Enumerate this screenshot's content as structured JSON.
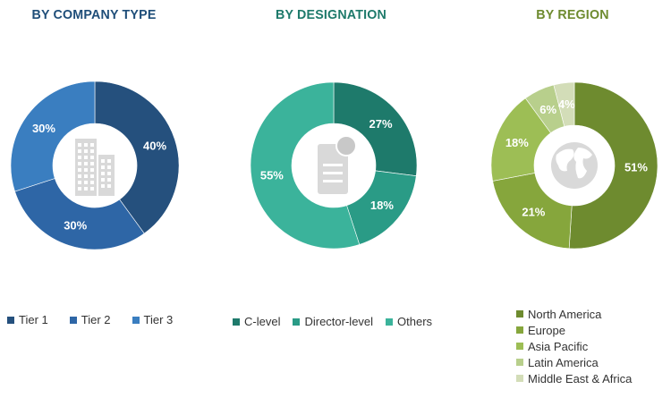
{
  "chart_data": [
    {
      "type": "pie",
      "title": "BY COMPANY TYPE",
      "title_color": "#1F4E79",
      "categories": [
        "Tier 1",
        "Tier 2",
        "Tier 3"
      ],
      "values": [
        40,
        30,
        30
      ],
      "value_labels": [
        "40%",
        "30%",
        "30%"
      ],
      "colors": [
        "#25507D",
        "#2E66A6",
        "#3A7EC0"
      ],
      "center_icon": "building-icon",
      "legend_position": "bottom"
    },
    {
      "type": "pie",
      "title": "BY DESIGNATION",
      "title_color": "#1E7A6B",
      "categories": [
        "C-level",
        "Director-level",
        "Others"
      ],
      "values": [
        27,
        18,
        55
      ],
      "value_labels": [
        "27%",
        "18%",
        "55%"
      ],
      "colors": [
        "#1E7A6B",
        "#2A9B86",
        "#3BB39B"
      ],
      "center_icon": "document-certificate-icon",
      "legend_position": "bottom"
    },
    {
      "type": "pie",
      "title": "BY REGION",
      "title_color": "#6E8B2F",
      "categories": [
        "North America",
        "Europe",
        "Asia Pacific",
        "Latin America",
        "Middle East & Africa"
      ],
      "values": [
        51,
        21,
        18,
        6,
        4
      ],
      "value_labels": [
        "51%",
        "21%",
        "18%",
        "6%",
        "4%"
      ],
      "colors": [
        "#6E8B2F",
        "#86A63C",
        "#9DBE55",
        "#B8CF8C",
        "#D3DDB8"
      ],
      "center_icon": "globe-icon",
      "legend_position": "bottom"
    }
  ]
}
